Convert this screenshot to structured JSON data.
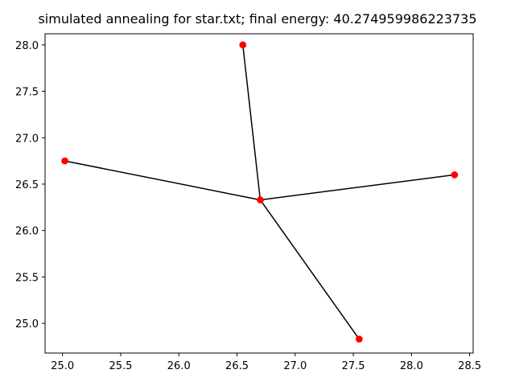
{
  "chart_data": {
    "type": "scatter",
    "title": "simulated annealing for star.txt; final energy: 40.274959986223735",
    "xlabel": "",
    "ylabel": "",
    "xlim": [
      24.85,
      28.53
    ],
    "ylim": [
      24.68,
      28.12
    ],
    "xticks": [
      25.0,
      25.5,
      26.0,
      26.5,
      27.0,
      27.5,
      28.0,
      28.5
    ],
    "xtick_labels": [
      "25.0",
      "25.5",
      "26.0",
      "26.5",
      "27.0",
      "27.5",
      "28.0",
      "28.5"
    ],
    "yticks": [
      25.0,
      25.5,
      26.0,
      26.5,
      27.0,
      27.5,
      28.0
    ],
    "ytick_labels": [
      "25.0",
      "25.5",
      "26.0",
      "26.5",
      "27.0",
      "27.5",
      "28.0"
    ],
    "grid": false,
    "points": [
      {
        "x": 26.7,
        "y": 26.33
      },
      {
        "x": 26.55,
        "y": 28.0
      },
      {
        "x": 25.02,
        "y": 26.75
      },
      {
        "x": 28.37,
        "y": 26.6
      },
      {
        "x": 27.55,
        "y": 24.83
      }
    ],
    "edges": [
      [
        0,
        1
      ],
      [
        0,
        2
      ],
      [
        0,
        3
      ],
      [
        0,
        4
      ]
    ],
    "point_color": "#ff0000",
    "edge_color": "#000000"
  }
}
